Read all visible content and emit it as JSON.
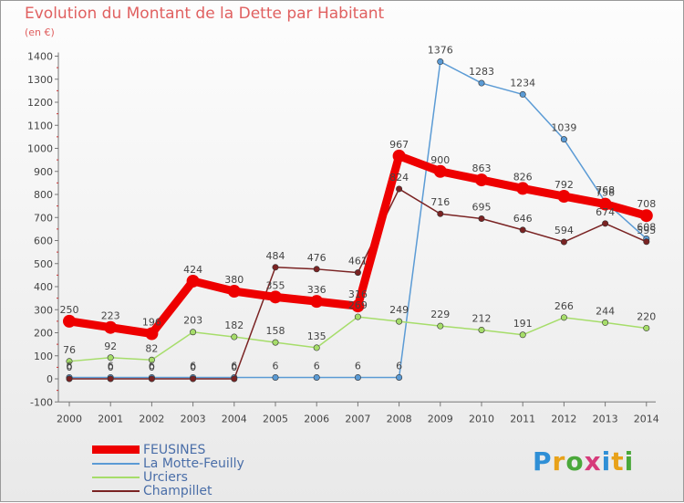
{
  "title": "Evolution du Montant de la Dette par Habitant",
  "subtitle": "(en €)",
  "logo_text": "Proxiti",
  "logo_colors": [
    "#2f8fd6",
    "#e8a21a",
    "#4aa83a",
    "#d63a7a",
    "#2f8fd6",
    "#e8a21a",
    "#4aa83a"
  ],
  "chart_data": {
    "type": "line",
    "x": [
      "2000",
      "2001",
      "2002",
      "2003",
      "2004",
      "2005",
      "2006",
      "2007",
      "2008",
      "2009",
      "2010",
      "2011",
      "2012",
      "2013",
      "2014"
    ],
    "ylim": [
      -100,
      1400
    ],
    "yticks": [
      -100,
      0,
      100,
      200,
      300,
      400,
      500,
      600,
      700,
      800,
      900,
      1000,
      1100,
      1200,
      1300,
      1400
    ],
    "grid": false,
    "legend_position": "bottom-left",
    "series": [
      {
        "name": "FEUSINES",
        "color": "#ee0000",
        "thick": true,
        "values": [
          250,
          223,
          196,
          424,
          380,
          355,
          336,
          316,
          967,
          900,
          863,
          826,
          792,
          758,
          708
        ],
        "labels": [
          "250",
          "223",
          "196",
          "424",
          "380",
          "355",
          "336",
          "316",
          "967",
          "900",
          "863",
          "826",
          "792",
          "758",
          "708"
        ]
      },
      {
        "name": "La Motte-Feuilly",
        "color": "#5b9bd5",
        "thick": false,
        "values": [
          6,
          6,
          6,
          6,
          6,
          6,
          6,
          6,
          6,
          1376,
          1283,
          1234,
          1039,
          768,
          608
        ],
        "labels": [
          "6",
          "6",
          "6",
          "6",
          "6",
          "6",
          "6",
          "6",
          "6",
          "1376",
          "1283",
          "1234",
          "1039",
          "768",
          "608"
        ]
      },
      {
        "name": "Urciers",
        "color": "#a6dd6a",
        "thick": false,
        "values": [
          76,
          92,
          82,
          203,
          182,
          158,
          135,
          269,
          249,
          229,
          212,
          191,
          266,
          244,
          220
        ],
        "labels": [
          "76",
          "92",
          "82",
          "203",
          "182",
          "158",
          "135",
          "269",
          "249",
          "229",
          "212",
          "191",
          "266",
          "244",
          "220"
        ]
      },
      {
        "name": "Champillet",
        "color": "#7a2323",
        "thick": false,
        "values": [
          0,
          0,
          0,
          0,
          0,
          484,
          476,
          461,
          824,
          716,
          695,
          646,
          594,
          674,
          595
        ],
        "labels": [
          "0",
          "0",
          "0",
          "0",
          "0",
          "484",
          "476",
          "461",
          "824",
          "716",
          "695",
          "646",
          "594",
          "674",
          "595"
        ]
      }
    ]
  }
}
